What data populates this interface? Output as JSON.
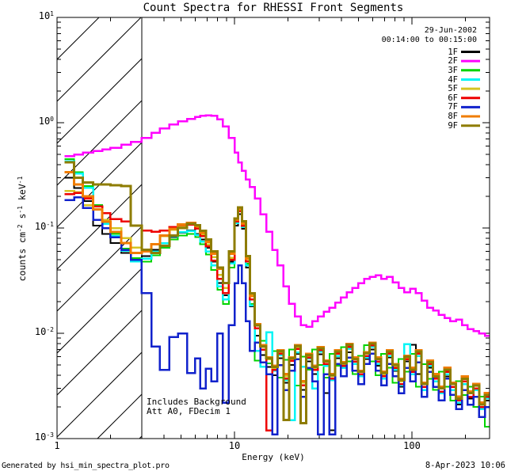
{
  "title": "Count Spectra for RHESSI Front Segments",
  "observation": {
    "date": "29-Jun-2002",
    "time_range": "00:14:00 to 00:15:00"
  },
  "annotations": {
    "background": "Includes Background",
    "attenuator": "Att A0, FDecim 1"
  },
  "footer": {
    "generator": "Generated by hsi_min_spectra_plot.pro",
    "generated_at": "8-Apr-2023 10:06"
  },
  "axes": {
    "xlabel": "Energy (keV)",
    "ylabel_parts": [
      {
        "t": "counts cm"
      },
      {
        "t": "-2",
        "sup": true
      },
      {
        "t": " s"
      },
      {
        "t": "-1",
        "sup": true
      },
      {
        "t": " keV"
      },
      {
        "t": "-1",
        "sup": true
      }
    ],
    "xtick_labels": [
      "1",
      "10",
      "100"
    ],
    "ytick_labels": [
      {
        "base": "10",
        "exp": "1"
      },
      {
        "base": "10",
        "exp": "0"
      },
      {
        "base": "10",
        "exp": "-1"
      },
      {
        "base": "10",
        "exp": "-2"
      },
      {
        "base": "10",
        "exp": "-3"
      }
    ]
  },
  "chart_data": {
    "type": "line",
    "style": "step-histogram",
    "title": "Count Spectra for RHESSI Front Segments",
    "xlabel": "Energy (keV)",
    "ylabel": "counts cm^-2 s^-1 keV^-1",
    "xscale": "log",
    "yscale": "log",
    "xlim": [
      1,
      275
    ],
    "ylim": [
      0.001,
      10
    ],
    "xticks": [
      1,
      10,
      100
    ],
    "yticks": [
      10,
      1,
      0.1,
      0.01,
      0.001
    ],
    "xminor": [
      2,
      3,
      4,
      5,
      6,
      7,
      8,
      9,
      20,
      30,
      40,
      50,
      60,
      70,
      80,
      90,
      200
    ],
    "hatch_region": {
      "xmin": 1,
      "xmax": 3
    },
    "legend_position": "top-right",
    "x": [
      1.1,
      1.25,
      1.4,
      1.6,
      1.8,
      2.0,
      2.3,
      2.6,
      3.0,
      3.4,
      3.8,
      4.3,
      4.8,
      5.4,
      6.0,
      6.4,
      6.9,
      7.4,
      8.0,
      8.6,
      9.3,
      10.0,
      10.5,
      11.0,
      11.6,
      12.2,
      13.0,
      14.0,
      15.1,
      16.3,
      17.5,
      18.9,
      20.3,
      21.9,
      23.6,
      25.4,
      27.4,
      29.5,
      31.8,
      34.3,
      36.9,
      39.8,
      42.9,
      46.2,
      49.8,
      53.7,
      57.8,
      62.3,
      67.1,
      72.3,
      77.9,
      84.0,
      90.5,
      97.5,
      105.1,
      113.2,
      122.0,
      131.5,
      141.7,
      152.7,
      164.5,
      177.3,
      191.0,
      205.9,
      221.8,
      239.0,
      257.6,
      277.6
    ],
    "series": [
      {
        "name": "1F",
        "color": "#000000",
        "width": 2,
        "values": [
          0.3,
          0.24,
          0.18,
          0.105,
          0.088,
          0.072,
          0.058,
          0.05,
          0.054,
          0.062,
          0.072,
          0.082,
          0.09,
          0.095,
          0.088,
          0.078,
          0.065,
          0.048,
          0.03,
          0.023,
          0.048,
          0.105,
          0.135,
          0.098,
          0.042,
          0.018,
          0.0095,
          0.0062,
          0.0048,
          0.004,
          0.0058,
          0.0034,
          0.005,
          0.0064,
          0.0029,
          0.0054,
          0.0041,
          0.0063,
          0.0027,
          0.0012,
          0.0058,
          0.0047,
          0.0066,
          0.0051,
          0.0039,
          0.0057,
          0.007,
          0.0049,
          0.0037,
          0.0059,
          0.0044,
          0.0031,
          0.0054,
          0.0078,
          0.0041,
          0.0029,
          0.0047,
          0.0035,
          0.0027,
          0.0039,
          0.0029,
          0.0021,
          0.0033,
          0.0024,
          0.0029,
          0.0019,
          0.0023,
          0.0015
        ]
      },
      {
        "name": "2F",
        "color": "#FF00FF",
        "width": 2.5,
        "values": [
          0.48,
          0.5,
          0.52,
          0.54,
          0.56,
          0.58,
          0.62,
          0.66,
          0.72,
          0.8,
          0.88,
          0.96,
          1.03,
          1.09,
          1.13,
          1.16,
          1.17,
          1.16,
          1.08,
          0.92,
          0.72,
          0.52,
          0.42,
          0.35,
          0.29,
          0.245,
          0.19,
          0.135,
          0.092,
          0.062,
          0.044,
          0.028,
          0.019,
          0.0145,
          0.012,
          0.0115,
          0.013,
          0.0145,
          0.016,
          0.0175,
          0.0195,
          0.022,
          0.0245,
          0.027,
          0.03,
          0.033,
          0.0345,
          0.0355,
          0.033,
          0.0345,
          0.0305,
          0.027,
          0.0245,
          0.0265,
          0.024,
          0.0205,
          0.0175,
          0.0165,
          0.015,
          0.014,
          0.013,
          0.0135,
          0.012,
          0.011,
          0.0105,
          0.01,
          0.0095,
          0.009
        ]
      },
      {
        "name": "3F",
        "color": "#00D400",
        "width": 2,
        "values": [
          0.45,
          0.34,
          0.25,
          0.165,
          0.115,
          0.088,
          0.064,
          0.052,
          0.048,
          0.055,
          0.065,
          0.078,
          0.085,
          0.088,
          0.082,
          0.07,
          0.056,
          0.04,
          0.026,
          0.019,
          0.042,
          0.115,
          0.158,
          0.105,
          0.046,
          0.019,
          0.0055,
          0.0085,
          0.0052,
          0.0068,
          0.0038,
          0.0056,
          0.007,
          0.0032,
          0.006,
          0.0045,
          0.007,
          0.005,
          0.0038,
          0.0064,
          0.0049,
          0.0074,
          0.0054,
          0.0041,
          0.0061,
          0.0077,
          0.0054,
          0.004,
          0.0064,
          0.0047,
          0.0034,
          0.0057,
          0.0043,
          0.0064,
          0.0031,
          0.0051,
          0.0037,
          0.0029,
          0.0043,
          0.0031,
          0.0023,
          0.0035,
          0.0026,
          0.0031,
          0.002,
          0.0025,
          0.0013,
          0.0017
        ]
      },
      {
        "name": "4F",
        "color": "#00F5F5",
        "width": 2.5,
        "values": [
          0.43,
          0.33,
          0.24,
          0.16,
          0.11,
          0.084,
          0.061,
          0.048,
          0.051,
          0.06,
          0.072,
          0.084,
          0.091,
          0.094,
          0.086,
          0.074,
          0.06,
          0.044,
          0.028,
          0.021,
          0.046,
          0.112,
          0.148,
          0.102,
          0.044,
          0.0185,
          0.0068,
          0.0048,
          0.0102,
          0.0044,
          0.0062,
          0.0036,
          0.0015,
          0.0066,
          0.0048,
          0.0058,
          0.003,
          0.0067,
          0.0049,
          0.0036,
          0.0061,
          0.0047,
          0.0071,
          0.0051,
          0.0039,
          0.0059,
          0.0074,
          0.0051,
          0.0037,
          0.0061,
          0.0045,
          0.0032,
          0.0079,
          0.0041,
          0.0061,
          0.0029,
          0.0049,
          0.0035,
          0.0027,
          0.0041,
          0.0029,
          0.0022,
          0.0033,
          0.0025,
          0.0029,
          0.0019,
          0.0024,
          0.0012
        ]
      },
      {
        "name": "5F",
        "color": "#D6C422",
        "width": 2.5,
        "values": [
          0.225,
          0.22,
          0.165,
          0.15,
          0.12,
          0.1,
          0.08,
          0.065,
          0.06,
          0.07,
          0.084,
          0.096,
          0.105,
          0.108,
          0.1,
          0.086,
          0.07,
          0.053,
          0.036,
          0.027,
          0.052,
          0.12,
          0.152,
          0.112,
          0.052,
          0.023,
          0.0118,
          0.0074,
          0.0057,
          0.0047,
          0.0067,
          0.0039,
          0.0057,
          0.0074,
          0.0034,
          0.0061,
          0.0047,
          0.0071,
          0.0054,
          0.0039,
          0.0067,
          0.0051,
          0.0077,
          0.0057,
          0.0043,
          0.0064,
          0.0079,
          0.0057,
          0.0041,
          0.0067,
          0.0049,
          0.0035,
          0.0059,
          0.0045,
          0.0067,
          0.0033,
          0.0053,
          0.0039,
          0.003,
          0.0045,
          0.0033,
          0.0024,
          0.0037,
          0.0027,
          0.0032,
          0.0021,
          0.0026,
          0.0017
        ]
      },
      {
        "name": "6F",
        "color": "#EE0000",
        "width": 2.5,
        "values": [
          0.21,
          0.215,
          0.19,
          0.16,
          0.138,
          0.122,
          0.115,
          0.105,
          0.095,
          0.092,
          0.095,
          0.102,
          0.107,
          0.108,
          0.099,
          0.084,
          0.067,
          0.049,
          0.033,
          0.024,
          0.05,
          0.115,
          0.145,
          0.105,
          0.048,
          0.021,
          0.0112,
          0.007,
          0.0012,
          0.0045,
          0.0064,
          0.0037,
          0.0055,
          0.0071,
          0.0032,
          0.0059,
          0.0045,
          0.0069,
          0.0051,
          0.0037,
          0.0064,
          0.0049,
          0.0074,
          0.0054,
          0.0041,
          0.0061,
          0.0077,
          0.0054,
          0.0039,
          0.0064,
          0.0047,
          0.0033,
          0.0057,
          0.0043,
          0.0064,
          0.0031,
          0.0051,
          0.0037,
          0.0028,
          0.0043,
          0.0031,
          0.0023,
          0.0035,
          0.0025,
          0.003,
          0.002,
          0.0025,
          0.0013
        ]
      },
      {
        "name": "7F",
        "color": "#1122CC",
        "width": 2.5,
        "values": [
          0.185,
          0.195,
          0.155,
          0.12,
          0.1,
          0.082,
          0.062,
          0.05,
          0.024,
          0.0075,
          0.0045,
          0.0092,
          0.01,
          0.0042,
          0.0058,
          0.003,
          0.0046,
          0.0035,
          0.01,
          0.0022,
          0.012,
          0.03,
          0.044,
          0.03,
          0.013,
          0.0068,
          0.0082,
          0.0053,
          0.0041,
          0.0011,
          0.005,
          0.0029,
          0.0044,
          0.0057,
          0.0025,
          0.0047,
          0.0035,
          0.0011,
          0.0041,
          0.0011,
          0.0051,
          0.0039,
          0.0059,
          0.0044,
          0.0033,
          0.0051,
          0.0064,
          0.0044,
          0.0032,
          0.0051,
          0.0039,
          0.0027,
          0.0047,
          0.0035,
          0.0053,
          0.0025,
          0.0043,
          0.0031,
          0.0023,
          0.0037,
          0.0026,
          0.0019,
          0.0029,
          0.0021,
          0.0025,
          0.0016,
          0.002,
          0.0011
        ]
      },
      {
        "name": "8F",
        "color": "#F07C00",
        "width": 3,
        "values": [
          0.34,
          0.26,
          0.2,
          0.15,
          0.115,
          0.092,
          0.072,
          0.058,
          0.06,
          0.07,
          0.085,
          0.098,
          0.108,
          0.112,
          0.104,
          0.09,
          0.074,
          0.057,
          0.041,
          0.03,
          0.057,
          0.12,
          0.15,
          0.11,
          0.051,
          0.0225,
          0.0122,
          0.0077,
          0.0059,
          0.0049,
          0.0069,
          0.0041,
          0.0059,
          0.0077,
          0.0035,
          0.0064,
          0.0049,
          0.0074,
          0.0055,
          0.0041,
          0.0069,
          0.0053,
          0.0079,
          0.0059,
          0.0044,
          0.0066,
          0.0081,
          0.0059,
          0.0043,
          0.0069,
          0.0051,
          0.0037,
          0.0061,
          0.0047,
          0.0069,
          0.0034,
          0.0055,
          0.0041,
          0.0031,
          0.0047,
          0.0034,
          0.0025,
          0.0039,
          0.0028,
          0.0033,
          0.0022,
          0.0027,
          0.0014
        ]
      },
      {
        "name": "9F",
        "color": "#8E7C00",
        "width": 3,
        "values": [
          0.42,
          0.3,
          0.27,
          0.26,
          0.26,
          0.255,
          0.25,
          0.105,
          0.062,
          0.058,
          0.068,
          0.085,
          0.1,
          0.11,
          0.106,
          0.094,
          0.078,
          0.06,
          0.042,
          0.03,
          0.06,
          0.123,
          0.157,
          0.116,
          0.054,
          0.024,
          0.0119,
          0.0075,
          0.0058,
          0.0048,
          0.0068,
          0.0015,
          0.0058,
          0.0076,
          0.0014,
          0.0062,
          0.0048,
          0.0072,
          0.0054,
          0.004,
          0.0067,
          0.0052,
          0.0078,
          0.0057,
          0.0043,
          0.0065,
          0.008,
          0.0057,
          0.0042,
          0.0067,
          0.005,
          0.0036,
          0.006,
          0.0045,
          0.0067,
          0.0033,
          0.0053,
          0.0039,
          0.003,
          0.0045,
          0.0033,
          0.0024,
          0.0037,
          0.0027,
          0.0032,
          0.0021,
          0.0026,
          0.0016
        ]
      }
    ]
  }
}
